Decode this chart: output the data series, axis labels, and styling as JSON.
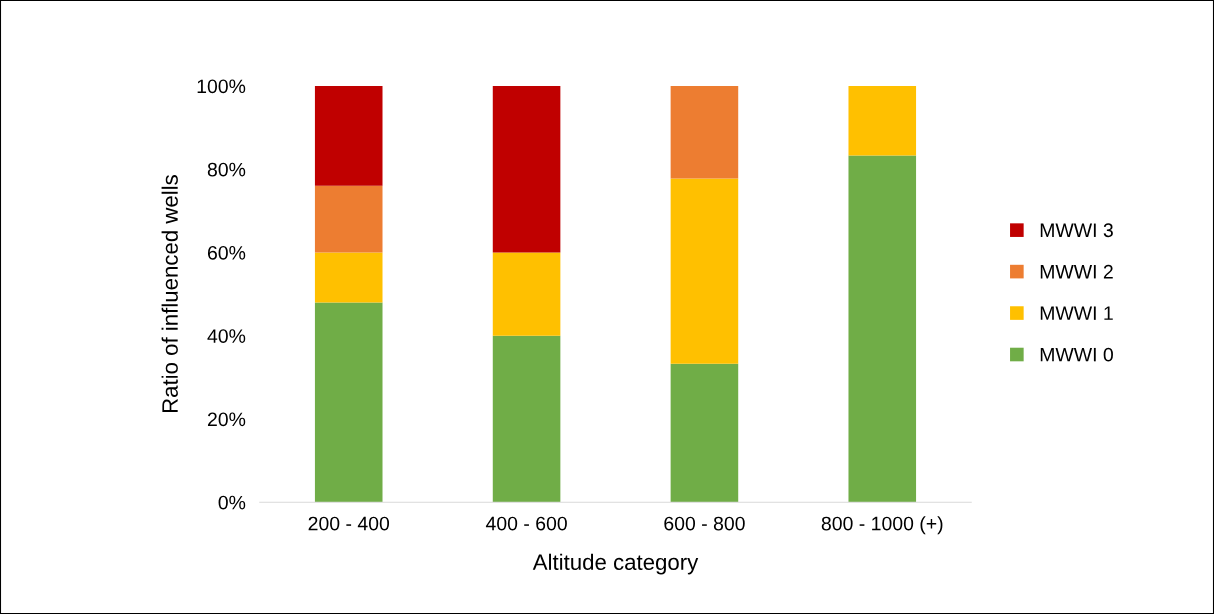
{
  "chart_data": {
    "type": "bar",
    "stacked": true,
    "xlabel": "Altitude category",
    "ylabel": "Ratio of influenced wells",
    "categories": [
      "200 - 400",
      "400 - 600",
      "600 - 800",
      "800 - 1000 (+)"
    ],
    "series": [
      {
        "name": "MWWI 0",
        "color": "#70ad47",
        "values": [
          48,
          40,
          33.3,
          83.3
        ]
      },
      {
        "name": "MWWI 1",
        "color": "#ffc000",
        "values": [
          12,
          20,
          44.5,
          16.7
        ]
      },
      {
        "name": "MWWI 2",
        "color": "#ed7d31",
        "values": [
          16,
          0,
          22.2,
          0
        ]
      },
      {
        "name": "MWWI 3",
        "color": "#c00000",
        "values": [
          24,
          40,
          0,
          0
        ]
      }
    ],
    "ylim": [
      0,
      100
    ],
    "yticks": [
      {
        "value": 0,
        "label": "0%"
      },
      {
        "value": 20,
        "label": "20%"
      },
      {
        "value": 40,
        "label": "40%"
      },
      {
        "value": 60,
        "label": "60%"
      },
      {
        "value": 80,
        "label": "80%"
      },
      {
        "value": 100,
        "label": "100%"
      }
    ],
    "grid": false,
    "legend": "right"
  }
}
